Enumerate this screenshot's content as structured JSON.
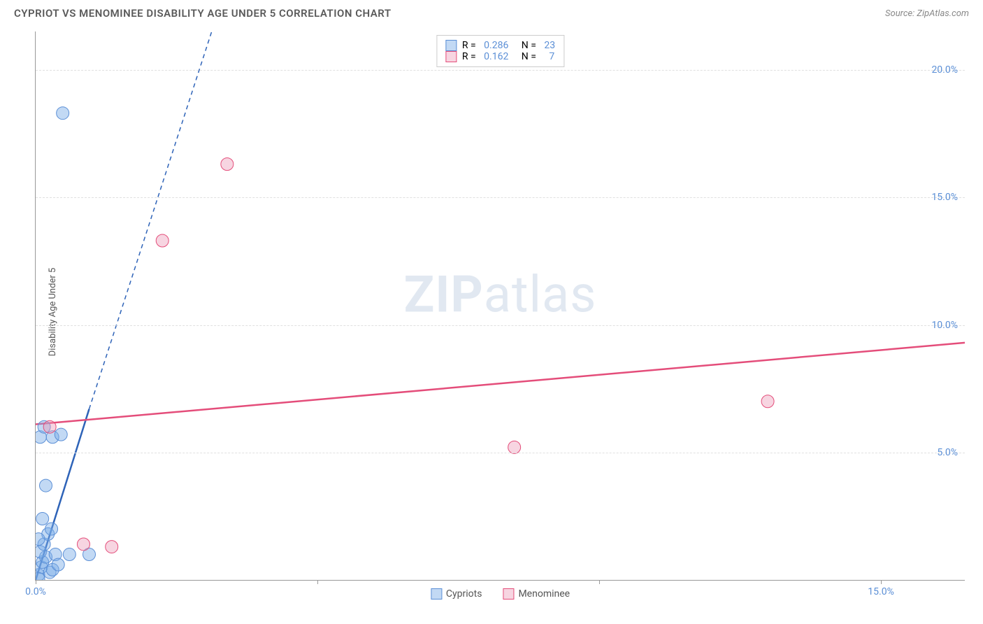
{
  "header": {
    "title": "CYPRIOT VS MENOMINEE DISABILITY AGE UNDER 5 CORRELATION CHART",
    "source": "Source: ZipAtlas.com"
  },
  "chart": {
    "type": "scatter",
    "ylabel": "Disability Age Under 5",
    "xlim": [
      0,
      16.5
    ],
    "ylim": [
      0,
      21.5
    ],
    "x_ticks": [
      0,
      5,
      10,
      15
    ],
    "x_tick_labels": [
      "0.0%",
      "",
      "",
      "15.0%"
    ],
    "y_gridlines": [
      5,
      10,
      15,
      20
    ],
    "y_tick_labels": [
      "5.0%",
      "10.0%",
      "15.0%",
      "20.0%"
    ],
    "grid_color": "#e0e0e0",
    "background_color": "#ffffff",
    "axis_color": "#999999",
    "tick_label_color": "#5b8fd6",
    "watermark": {
      "zip": "ZIP",
      "atlas": "atlas"
    },
    "series": [
      {
        "name": "Cypriots",
        "fill": "rgba(120,170,230,0.45)",
        "stroke": "#5b8fd6",
        "marker_radius": 9,
        "trend": {
          "x1": 0,
          "y1": 0,
          "x2": 0.95,
          "y2": 6.7,
          "color": "#2e63b8",
          "width": 2.5,
          "dash": "none",
          "ext_x2": 3.2,
          "ext_y2": 22,
          "ext_dash": "6,5"
        },
        "points": [
          {
            "x": 0.05,
            "y": 0.2
          },
          {
            "x": 0.1,
            "y": 0.5
          },
          {
            "x": 0.12,
            "y": 0.7
          },
          {
            "x": 0.18,
            "y": 0.9
          },
          {
            "x": 0.25,
            "y": 0.3
          },
          {
            "x": 0.08,
            "y": 1.1
          },
          {
            "x": 0.3,
            "y": 0.4
          },
          {
            "x": 0.15,
            "y": 1.4
          },
          {
            "x": 0.22,
            "y": 1.8
          },
          {
            "x": 0.35,
            "y": 1.0
          },
          {
            "x": 0.05,
            "y": 1.6
          },
          {
            "x": 0.4,
            "y": 0.6
          },
          {
            "x": 0.28,
            "y": 2.0
          },
          {
            "x": 0.12,
            "y": 2.4
          },
          {
            "x": 0.6,
            "y": 1.0
          },
          {
            "x": 0.18,
            "y": 3.7
          },
          {
            "x": 0.08,
            "y": 5.6
          },
          {
            "x": 0.3,
            "y": 5.6
          },
          {
            "x": 0.45,
            "y": 5.7
          },
          {
            "x": 0.15,
            "y": 6.0
          },
          {
            "x": 0.48,
            "y": 18.3
          },
          {
            "x": 0.95,
            "y": 1.0
          },
          {
            "x": 0.05,
            "y": 0.05
          }
        ]
      },
      {
        "name": "Menominee",
        "fill": "rgba(235,150,180,0.40)",
        "stroke": "#e44d7a",
        "marker_radius": 9,
        "trend": {
          "x1": 0,
          "y1": 6.1,
          "x2": 16.5,
          "y2": 9.3,
          "color": "#e44d7a",
          "width": 2.5,
          "dash": "none"
        },
        "points": [
          {
            "x": 0.25,
            "y": 6.0
          },
          {
            "x": 0.85,
            "y": 1.4
          },
          {
            "x": 1.35,
            "y": 1.3
          },
          {
            "x": 2.25,
            "y": 13.3
          },
          {
            "x": 3.4,
            "y": 16.3
          },
          {
            "x": 8.5,
            "y": 5.2
          },
          {
            "x": 13.0,
            "y": 7.0
          }
        ]
      }
    ],
    "legend_top": [
      {
        "swatch_fill": "rgba(120,170,230,0.45)",
        "swatch_stroke": "#5b8fd6",
        "r_label": "R =",
        "r_value": "0.286",
        "n_label": "N =",
        "n_value": "23"
      },
      {
        "swatch_fill": "rgba(235,150,180,0.40)",
        "swatch_stroke": "#e44d7a",
        "r_label": "R =",
        "r_value": "0.162",
        "n_label": "N =",
        "n_value": "  7"
      }
    ],
    "legend_bottom": [
      {
        "swatch_fill": "rgba(120,170,230,0.45)",
        "swatch_stroke": "#5b8fd6",
        "label": "Cypriots"
      },
      {
        "swatch_fill": "rgba(235,150,180,0.40)",
        "swatch_stroke": "#e44d7a",
        "label": "Menominee"
      }
    ]
  }
}
